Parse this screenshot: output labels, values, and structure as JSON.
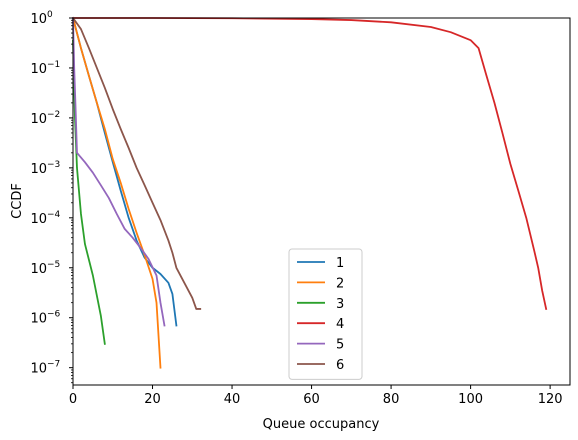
{
  "chart_data": {
    "type": "line",
    "title": "",
    "xlabel": "Queue occupancy",
    "ylabel": "CCDF",
    "xlim": [
      0,
      125
    ],
    "ylim": [
      4.5e-08,
      1
    ],
    "yscale": "log",
    "grid": false,
    "legend_position": "lower center",
    "x_ticks": [
      {
        "value": 0,
        "label": "0"
      },
      {
        "value": 20,
        "label": "20"
      },
      {
        "value": 40,
        "label": "40"
      },
      {
        "value": 60,
        "label": "60"
      },
      {
        "value": 80,
        "label": "80"
      },
      {
        "value": 100,
        "label": "100"
      },
      {
        "value": 120,
        "label": "120"
      }
    ],
    "y_ticks": [
      {
        "exp": 0,
        "label": "10",
        "sup": "0"
      },
      {
        "exp": -1,
        "label": "10",
        "sup": "−1"
      },
      {
        "exp": -2,
        "label": "10",
        "sup": "−2"
      },
      {
        "exp": -3,
        "label": "10",
        "sup": "−3"
      },
      {
        "exp": -4,
        "label": "10",
        "sup": "−4"
      },
      {
        "exp": -5,
        "label": "10",
        "sup": "−5"
      },
      {
        "exp": -6,
        "label": "10",
        "sup": "−6"
      },
      {
        "exp": -7,
        "label": "10",
        "sup": "−7"
      }
    ],
    "series": [
      {
        "name": "1",
        "color": "#1f77b4",
        "points": [
          [
            0,
            1
          ],
          [
            1,
            0.5
          ],
          [
            2,
            0.25
          ],
          [
            4,
            0.07
          ],
          [
            6,
            0.02
          ],
          [
            8,
            0.005
          ],
          [
            10,
            0.0013
          ],
          [
            12,
            0.00035
          ],
          [
            14,
            0.0001
          ],
          [
            16,
            3.5e-05
          ],
          [
            18,
            1.6e-05
          ],
          [
            20,
            1e-05
          ],
          [
            22,
            7.5e-06
          ],
          [
            24,
            5e-06
          ],
          [
            25,
            3e-06
          ],
          [
            26,
            7e-07
          ]
        ]
      },
      {
        "name": "2",
        "color": "#ff7f0e",
        "points": [
          [
            0,
            1
          ],
          [
            1,
            0.5
          ],
          [
            2,
            0.25
          ],
          [
            4,
            0.07
          ],
          [
            6,
            0.02
          ],
          [
            8,
            0.006
          ],
          [
            10,
            0.0015
          ],
          [
            12,
            0.0005
          ],
          [
            14,
            0.00015
          ],
          [
            16,
            5e-05
          ],
          [
            18,
            1.8e-05
          ],
          [
            20,
            6e-06
          ],
          [
            21,
            2e-06
          ],
          [
            22,
            1e-07
          ]
        ]
      },
      {
        "name": "3",
        "color": "#2ca02c",
        "points": [
          [
            0,
            0.35
          ],
          [
            0.5,
            0.01
          ],
          [
            1,
            0.001
          ],
          [
            2,
            0.00012
          ],
          [
            3,
            3e-05
          ],
          [
            5,
            7e-06
          ],
          [
            7,
            1.1e-06
          ],
          [
            8,
            3e-07
          ]
        ]
      },
      {
        "name": "4",
        "color": "#d62728",
        "points": [
          [
            0,
            1
          ],
          [
            20,
            0.999
          ],
          [
            40,
            0.99
          ],
          [
            60,
            0.95
          ],
          [
            70,
            0.91
          ],
          [
            80,
            0.82
          ],
          [
            90,
            0.66
          ],
          [
            95,
            0.52
          ],
          [
            100,
            0.36
          ],
          [
            102,
            0.25
          ],
          [
            104,
            0.07
          ],
          [
            106,
            0.02
          ],
          [
            108,
            0.005
          ],
          [
            110,
            0.0012
          ],
          [
            112,
            0.00035
          ],
          [
            114,
            0.0001
          ],
          [
            116,
            2.2e-05
          ],
          [
            117,
            1e-05
          ],
          [
            118,
            3.5e-06
          ],
          [
            119,
            1.5e-06
          ]
        ]
      },
      {
        "name": "5",
        "color": "#9467bd",
        "points": [
          [
            0,
            1
          ],
          [
            0.3,
            0.1
          ],
          [
            0.6,
            0.02
          ],
          [
            1,
            0.002
          ],
          [
            3,
            0.0013
          ],
          [
            5,
            0.0008
          ],
          [
            7,
            0.00045
          ],
          [
            9,
            0.00025
          ],
          [
            11,
            0.00012
          ],
          [
            13,
            6e-05
          ],
          [
            15,
            4e-05
          ],
          [
            17,
            2.5e-05
          ],
          [
            19,
            1.5e-05
          ],
          [
            21,
            7e-06
          ],
          [
            22,
            2e-06
          ],
          [
            23,
            7e-07
          ]
        ]
      },
      {
        "name": "6",
        "color": "#8c564b",
        "points": [
          [
            0,
            1
          ],
          [
            2,
            0.6
          ],
          [
            4,
            0.25
          ],
          [
            6,
            0.1
          ],
          [
            8,
            0.04
          ],
          [
            10,
            0.015
          ],
          [
            12,
            0.006
          ],
          [
            14,
            0.0025
          ],
          [
            16,
            0.001
          ],
          [
            18,
            0.00045
          ],
          [
            20,
            0.0002
          ],
          [
            22,
            9e-05
          ],
          [
            24,
            3.5e-05
          ],
          [
            25,
            2e-05
          ],
          [
            26,
            1e-05
          ],
          [
            28,
            5e-06
          ],
          [
            30,
            2.5e-06
          ],
          [
            31,
            1.5e-06
          ],
          [
            32,
            1.5e-06
          ]
        ]
      }
    ]
  }
}
